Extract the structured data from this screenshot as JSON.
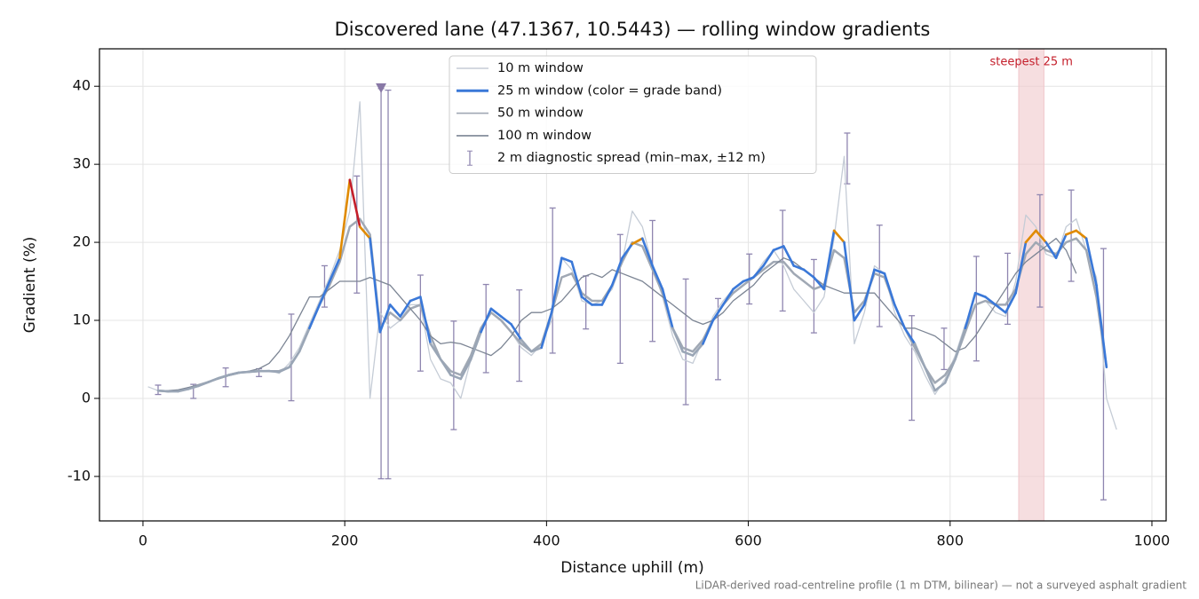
{
  "chart_data": {
    "type": "line",
    "title": "Discovered lane (47.1367, 10.5443) — rolling window gradients",
    "x_label": "Distance uphill (m)",
    "y_label": "Gradient (%)",
    "footnote": "LiDAR-derived road-centreline profile (1 m DTM, bilinear) — not a surveyed asphalt gradient",
    "xlim": [
      -43.1,
      1014.1
    ],
    "ylim": [
      -15.7,
      44.8
    ],
    "xticks": [
      0,
      200,
      400,
      600,
      800,
      1000
    ],
    "yticks": [
      -10,
      0,
      10,
      20,
      30,
      40
    ],
    "grid": true,
    "legend": "upper center",
    "x": [
      5,
      15,
      25,
      35,
      45,
      55,
      65,
      75,
      85,
      95,
      105,
      115,
      125,
      135,
      145,
      155,
      165,
      175,
      185,
      195,
      205,
      215,
      225,
      235,
      245,
      255,
      265,
      275,
      285,
      295,
      305,
      315,
      325,
      335,
      345,
      355,
      365,
      375,
      385,
      395,
      405,
      415,
      425,
      435,
      445,
      455,
      465,
      475,
      485,
      495,
      505,
      515,
      525,
      535,
      545,
      555,
      565,
      575,
      585,
      595,
      605,
      615,
      625,
      635,
      645,
      655,
      665,
      675,
      685,
      695,
      705,
      715,
      725,
      735,
      745,
      755,
      765,
      775,
      785,
      795,
      805,
      815,
      825,
      835,
      845,
      855,
      865,
      875,
      885,
      895,
      905,
      915,
      925,
      935,
      945,
      955,
      965
    ],
    "series": [
      {
        "name": "10 m window",
        "color": "#c5ccd6",
        "width": 1.3,
        "values": [
          1.5,
          1.0,
          0.8,
          1.0,
          1.3,
          1.6,
          2.2,
          2.6,
          3.0,
          3.3,
          3.4,
          3.5,
          3.6,
          3.2,
          4.5,
          6.5,
          9.5,
          12.5,
          15.5,
          19,
          24,
          38,
          0,
          11,
          9,
          10,
          12,
          12,
          5,
          2.5,
          2,
          0,
          5,
          9,
          11,
          10,
          8.5,
          6.5,
          5.5,
          7,
          10,
          18,
          16.5,
          12.5,
          12,
          12.5,
          14,
          17.5,
          24,
          22,
          17,
          13,
          8,
          5,
          4.5,
          7.5,
          10.5,
          12.5,
          14,
          15,
          15.5,
          17.5,
          19,
          17,
          14,
          12.5,
          11,
          13,
          20.5,
          31,
          7,
          11,
          17,
          16,
          11,
          8,
          6,
          3,
          0.5,
          2.5,
          5.5,
          9.5,
          12,
          12.5,
          11,
          10.5,
          15,
          23.5,
          22,
          18.5,
          18,
          22,
          23,
          19,
          15.5,
          0,
          -4
        ]
      },
      {
        "name": "50 m window",
        "color": "#a0a8b4",
        "width": 2.5,
        "values": [
          null,
          1,
          0.9,
          1.0,
          1.3,
          1.7,
          2.1,
          2.6,
          3.0,
          3.3,
          3.4,
          3.5,
          3.5,
          3.5,
          4,
          6,
          9,
          12,
          14.5,
          17.5,
          22,
          23,
          21,
          9,
          11,
          10,
          11.5,
          12,
          8,
          5,
          3.5,
          3,
          5.5,
          9,
          11,
          10,
          8.5,
          7,
          6,
          7,
          11,
          15.5,
          16,
          13.5,
          12.5,
          12.5,
          14.5,
          17.5,
          20,
          19.5,
          16.5,
          13.5,
          9,
          6.5,
          6,
          7.5,
          10,
          12,
          13.5,
          14.5,
          15.5,
          16.5,
          17.5,
          17.5,
          16,
          15,
          14,
          14.5,
          19,
          18,
          11,
          12.5,
          16,
          15.5,
          12,
          9,
          6.5,
          4,
          2,
          3,
          5,
          8.5,
          12,
          12.5,
          12,
          12,
          14,
          18.5,
          20,
          19,
          18.5,
          20,
          20.5,
          19,
          13,
          4,
          null
        ]
      },
      {
        "name": "100 m window",
        "color": "#7c8594",
        "width": 1.3,
        "values": [
          null,
          1,
          1,
          1.1,
          1.4,
          1.7,
          2.1,
          2.5,
          2.9,
          3.2,
          3.5,
          3.8,
          4.5,
          6,
          8,
          10.5,
          13,
          13,
          14,
          15,
          15,
          15,
          15.5,
          15,
          14.5,
          13,
          11.5,
          10,
          8,
          7,
          7.2,
          7,
          6.5,
          6,
          5.5,
          6.5,
          8,
          10,
          11,
          11,
          11.5,
          12.5,
          14,
          15.5,
          16,
          15.5,
          16.5,
          16,
          15.5,
          15,
          14,
          13,
          12,
          11,
          10,
          9.5,
          10,
          11,
          12.5,
          13.5,
          14.5,
          16,
          17,
          18,
          17.5,
          16.5,
          15.5,
          14.5,
          14,
          13.5,
          13.5,
          13.5,
          13.5,
          12,
          10.5,
          9,
          9,
          8.5,
          8,
          7,
          6,
          6.5,
          8,
          10,
          12,
          14,
          16,
          17.5,
          18.5,
          19.5,
          20.5,
          19,
          16,
          null,
          null,
          null,
          null
        ]
      },
      {
        "name": "25 m window (color = grade band)",
        "color": "#3a78d8",
        "width": 2.6,
        "banded": true,
        "band_edges": [
          8,
          20,
          25
        ],
        "band_colors": [
          "#9aa6b6",
          "#3a78d8",
          "#e08a00",
          "#c41e2a"
        ],
        "values": [
          null,
          1,
          0.9,
          0.9,
          1.2,
          1.6,
          2.1,
          2.6,
          3,
          3.3,
          3.4,
          3.5,
          3.5,
          3.4,
          4,
          6,
          9,
          12,
          15,
          18,
          28,
          22,
          20.5,
          8.5,
          12,
          10.5,
          12.5,
          13,
          7,
          5,
          3,
          2.5,
          5,
          8.5,
          11.5,
          10.5,
          9.5,
          7.5,
          6,
          6.5,
          11,
          18,
          17.5,
          13,
          12,
          12,
          14.5,
          18,
          19.8,
          20.5,
          17,
          14,
          9,
          6,
          5.5,
          7,
          10,
          12,
          14,
          15,
          15.5,
          17,
          19,
          19.5,
          17,
          16.5,
          15.5,
          14,
          21.5,
          20,
          10,
          12,
          16.5,
          16,
          12,
          9,
          7,
          4,
          1,
          2,
          5,
          9,
          13.5,
          13,
          12,
          11,
          13.5,
          20,
          21.5,
          20,
          18,
          21,
          21.5,
          20.5,
          14.5,
          4,
          null
        ]
      }
    ],
    "legend_order": [
      0,
      3,
      1,
      2
    ],
    "errorbars": {
      "name": "2 m diagnostic spread (min–max, ±12 m)",
      "color": "#8f86b0",
      "x": [
        15,
        50,
        82,
        115,
        147,
        180,
        212,
        236,
        243,
        275,
        308,
        340,
        373,
        406,
        439,
        473,
        505,
        538,
        570,
        601,
        634,
        665,
        698,
        730,
        762,
        794,
        826,
        857,
        889,
        920,
        952
      ],
      "low": [
        0.5,
        0,
        1.5,
        2.8,
        -0.3,
        11.7,
        13.5,
        -10.3,
        -10.3,
        3.5,
        -4,
        3.3,
        2.2,
        5.8,
        8.9,
        4.5,
        7.3,
        -0.8,
        2.4,
        12.1,
        11.2,
        8.4,
        27.5,
        9.2,
        -2.8,
        3.7,
        4.8,
        9.5,
        11.7,
        15,
        -13
      ],
      "high": [
        1.7,
        1.8,
        3.9,
        3.8,
        10.8,
        17,
        28.5,
        39.7,
        39.5,
        15.8,
        9.9,
        14.6,
        13.9,
        24.4,
        15.7,
        21,
        22.8,
        15.3,
        12.8,
        18.5,
        24.1,
        17.8,
        34,
        22.2,
        10.6,
        9,
        18.2,
        18.6,
        26.1,
        26.7,
        19.2
      ]
    },
    "marker": {
      "x": 236,
      "y": 39.7,
      "color": "#8878a6"
    },
    "highlight": {
      "x": [
        868,
        893
      ],
      "label": "steepest 25 m",
      "color": "#f0c8cc",
      "label_color": "#c41e2a"
    }
  }
}
